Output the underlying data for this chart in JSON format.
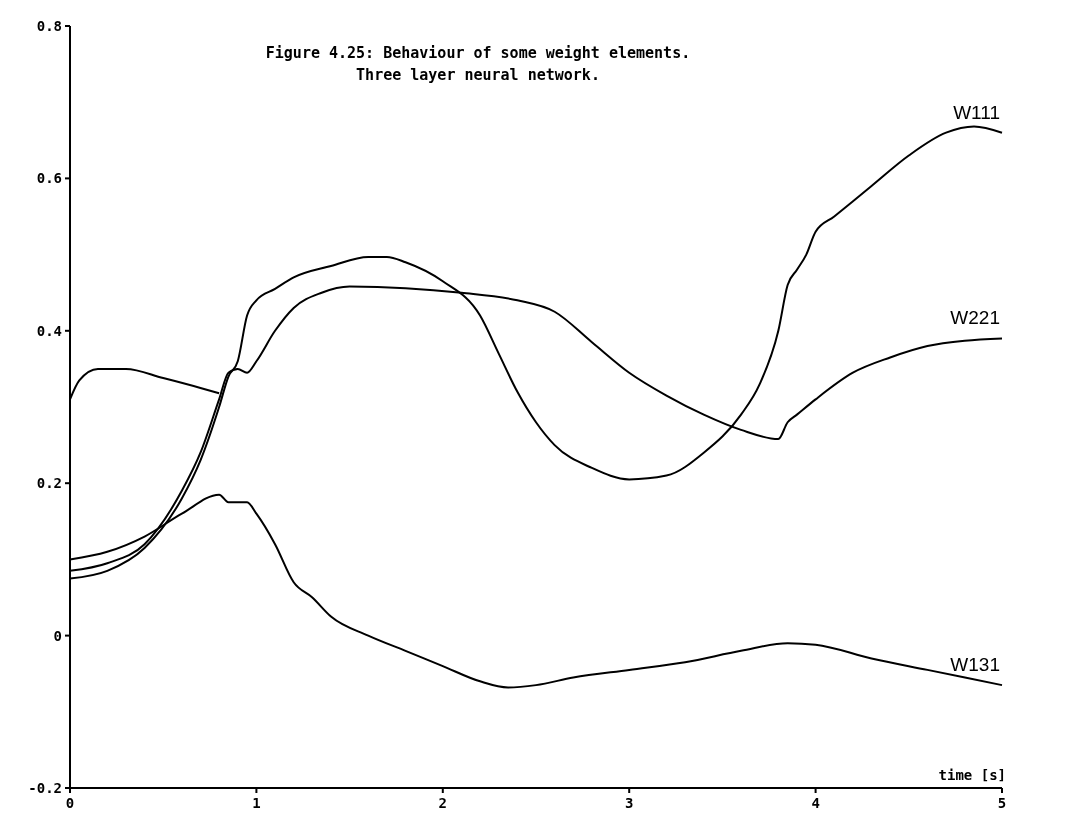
{
  "chart_data": {
    "type": "line",
    "title": "Figure 4.25: Behaviour of some weight elements.",
    "subtitle": "Three layer neural network.",
    "xlabel": "time [s]",
    "xlim": [
      0,
      5
    ],
    "xticks": [
      0,
      1,
      2,
      3,
      4,
      5
    ],
    "ylim": [
      -0.2,
      0.8
    ],
    "yticks": [
      -0.2,
      0,
      0.2,
      0.4,
      0.6,
      0.8
    ],
    "grid": false,
    "line_style": "solid",
    "marker": "none",
    "series": [
      {
        "name": "W111",
        "color": "#000000",
        "x": [
          0,
          0.2,
          0.4,
          0.6,
          0.7,
          0.8,
          0.85,
          0.9,
          0.95,
          1.0,
          1.1,
          1.2,
          1.4,
          1.6,
          1.7,
          1.8,
          2.0,
          2.2,
          2.3,
          2.4,
          2.5,
          2.6,
          2.8,
          3.0,
          3.2,
          3.4,
          3.6,
          3.7,
          3.8,
          3.85,
          3.9,
          3.95,
          4.0,
          4.1,
          4.3,
          4.5,
          4.7,
          4.85,
          5.0
        ],
        "values": [
          0.075,
          0.085,
          0.115,
          0.18,
          0.23,
          0.3,
          0.34,
          0.36,
          0.42,
          0.44,
          0.455,
          0.47,
          0.485,
          0.497,
          0.497,
          0.49,
          0.465,
          0.42,
          0.37,
          0.32,
          0.28,
          0.25,
          0.22,
          0.205,
          0.21,
          0.24,
          0.29,
          0.33,
          0.4,
          0.46,
          0.48,
          0.5,
          0.53,
          0.55,
          0.59,
          0.63,
          0.66,
          0.668,
          0.66
        ]
      },
      {
        "name": "W221",
        "color": "#000000",
        "x": [
          0,
          0.2,
          0.4,
          0.6,
          0.7,
          0.8,
          0.85,
          0.9,
          0.95,
          1.0,
          1.1,
          1.2,
          1.35,
          1.5,
          1.8,
          2.1,
          2.4,
          2.6,
          2.8,
          3.0,
          3.2,
          3.4,
          3.6,
          3.8,
          3.85,
          3.9,
          4.0,
          4.2,
          4.4,
          4.6,
          4.8,
          5.0
        ],
        "values": [
          0.085,
          0.095,
          0.12,
          0.19,
          0.24,
          0.31,
          0.345,
          0.35,
          0.345,
          0.36,
          0.4,
          0.43,
          0.45,
          0.458,
          0.456,
          0.45,
          0.44,
          0.425,
          0.385,
          0.345,
          0.315,
          0.29,
          0.27,
          0.258,
          0.28,
          0.29,
          0.31,
          0.345,
          0.365,
          0.38,
          0.387,
          0.39
        ]
      },
      {
        "name": "W131",
        "color": "#000000",
        "x": [
          0,
          0.2,
          0.4,
          0.6,
          0.8,
          0.85,
          0.95,
          1.0,
          1.1,
          1.2,
          1.3,
          1.4,
          1.6,
          1.8,
          2.0,
          2.2,
          2.35,
          2.5,
          2.7,
          3.0,
          3.3,
          3.6,
          3.85,
          4.0,
          4.3,
          4.6,
          5.0
        ],
        "values": [
          0.1,
          0.11,
          0.13,
          0.16,
          0.185,
          0.175,
          0.175,
          0.16,
          0.12,
          0.07,
          0.05,
          0.025,
          0,
          -0.02,
          -0.04,
          -0.06,
          -0.068,
          -0.065,
          -0.055,
          -0.045,
          -0.035,
          -0.02,
          -0.01,
          -0.012,
          -0.03,
          -0.045,
          -0.065
        ]
      },
      {
        "color": "#000000",
        "x": [
          0,
          0.05,
          0.15,
          0.3,
          0.5,
          0.7,
          0.8
        ],
        "values": [
          0.31,
          0.335,
          0.35,
          0.35,
          0.338,
          0.325,
          0.318
        ]
      }
    ]
  }
}
